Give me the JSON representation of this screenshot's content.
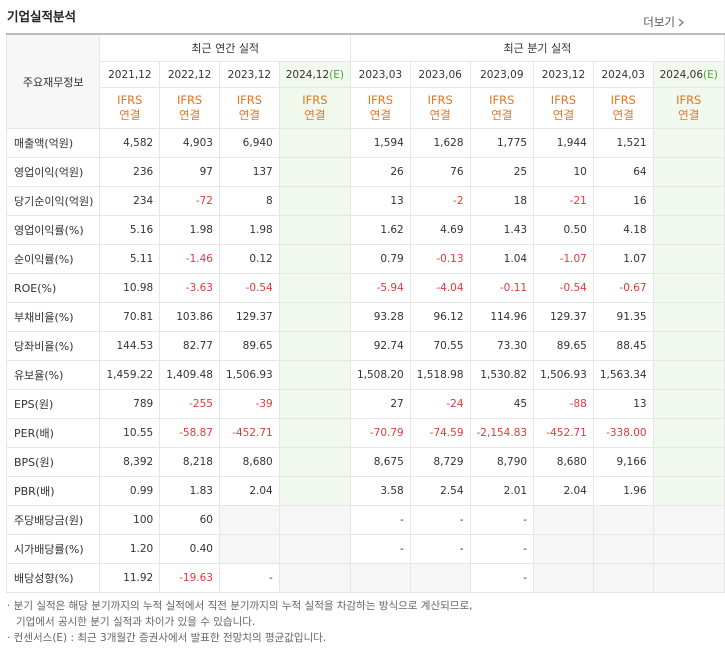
{
  "header": {
    "title": "기업실적분석",
    "more": "더보기"
  },
  "table": {
    "corner": "주요재무정보",
    "annual_title": "최근 연간 실적",
    "quarterly_title": "최근 분기 실적",
    "annual_columns": [
      {
        "period": "2021,12",
        "standard": "IFRS",
        "scope": "연결"
      },
      {
        "period": "2022,12",
        "standard": "IFRS",
        "scope": "연결"
      },
      {
        "period": "2023,12",
        "standard": "IFRS",
        "scope": "연결"
      },
      {
        "period": "2024,12",
        "estimate": "(E)",
        "standard": "IFRS",
        "scope": "연결"
      }
    ],
    "quarterly_columns": [
      {
        "period": "2023,03",
        "standard": "IFRS",
        "scope": "연결"
      },
      {
        "period": "2023,06",
        "standard": "IFRS",
        "scope": "연결"
      },
      {
        "period": "2023,09",
        "standard": "IFRS",
        "scope": "연결"
      },
      {
        "period": "2023,12",
        "standard": "IFRS",
        "scope": "연결"
      },
      {
        "period": "2024,03",
        "standard": "IFRS",
        "scope": "연결"
      },
      {
        "period": "2024,06",
        "estimate": "(E)",
        "standard": "IFRS",
        "scope": "연결"
      }
    ],
    "rows": [
      {
        "label": "매출액(억원)",
        "annual": [
          "4,582",
          "4,903",
          "6,940",
          null
        ],
        "quarterly": [
          "1,594",
          "1,628",
          "1,775",
          "1,944",
          "1,521",
          null
        ]
      },
      {
        "label": "영업이익(억원)",
        "annual": [
          "236",
          "97",
          "137",
          null
        ],
        "quarterly": [
          "26",
          "76",
          "25",
          "10",
          "64",
          null
        ]
      },
      {
        "label": "당기순이익(억원)",
        "annual": [
          "234",
          "-72",
          "8",
          null
        ],
        "quarterly": [
          "13",
          "-2",
          "18",
          "-21",
          "16",
          null
        ]
      },
      {
        "label": "영업이익률(%)",
        "annual": [
          "5.16",
          "1.98",
          "1.98",
          null
        ],
        "quarterly": [
          "1.62",
          "4.69",
          "1.43",
          "0.50",
          "4.18",
          null
        ]
      },
      {
        "label": "순이익률(%)",
        "annual": [
          "5.11",
          "-1.46",
          "0.12",
          null
        ],
        "quarterly": [
          "0.79",
          "-0.13",
          "1.04",
          "-1.07",
          "1.07",
          null
        ]
      },
      {
        "label": "ROE(%)",
        "annual": [
          "10.98",
          "-3.63",
          "-0.54",
          null
        ],
        "quarterly": [
          "-5.94",
          "-4.04",
          "-0.11",
          "-0.54",
          "-0.67",
          null
        ]
      },
      {
        "label": "부채비율(%)",
        "annual": [
          "70.81",
          "103.86",
          "129.37",
          null
        ],
        "quarterly": [
          "93.28",
          "96.12",
          "114.96",
          "129.37",
          "91.35",
          null
        ]
      },
      {
        "label": "당좌비율(%)",
        "annual": [
          "144.53",
          "82.77",
          "89.65",
          null
        ],
        "quarterly": [
          "92.74",
          "70.55",
          "73.30",
          "89.65",
          "88.45",
          null
        ]
      },
      {
        "label": "유보율(%)",
        "annual": [
          "1,459.22",
          "1,409.48",
          "1,506.93",
          null
        ],
        "quarterly": [
          "1,508.20",
          "1,518.98",
          "1,530.82",
          "1,506.93",
          "1,563.34",
          null
        ]
      },
      {
        "label": "EPS(원)",
        "annual": [
          "789",
          "-255",
          "-39",
          null
        ],
        "quarterly": [
          "27",
          "-24",
          "45",
          "-88",
          "13",
          null
        ]
      },
      {
        "label": "PER(배)",
        "annual": [
          "10.55",
          "-58.87",
          "-452.71",
          null
        ],
        "quarterly": [
          "-70.79",
          "-74.59",
          "-2,154.83",
          "-452.71",
          "-338.00",
          null
        ]
      },
      {
        "label": "BPS(원)",
        "annual": [
          "8,392",
          "8,218",
          "8,680",
          null
        ],
        "quarterly": [
          "8,675",
          "8,729",
          "8,790",
          "8,680",
          "9,166",
          null
        ]
      },
      {
        "label": "PBR(배)",
        "annual": [
          "0.99",
          "1.83",
          "2.04",
          null
        ],
        "quarterly": [
          "3.58",
          "2.54",
          "2.01",
          "2.04",
          "1.96",
          null
        ]
      },
      {
        "label": "주당배당금(원)",
        "annual": [
          "100",
          "60",
          null,
          null
        ],
        "quarterly": [
          "-",
          "-",
          "-",
          null,
          null,
          null
        ]
      },
      {
        "label": "시가배당률(%)",
        "annual": [
          "1.20",
          "0.40",
          null,
          null
        ],
        "quarterly": [
          "-",
          "-",
          "-",
          null,
          null,
          null
        ]
      },
      {
        "label": "배당성향(%)",
        "annual": [
          "11.92",
          "-19.63",
          "-",
          null
        ],
        "quarterly": [
          null,
          null,
          "-",
          null,
          null,
          null
        ]
      }
    ]
  },
  "notes": [
    "· 분기 실적은 해당 분기까지의 누적 실적에서 직전 분기까지의 누적 실적을 차감하는 방식으로 계산되므로,",
    "기업에서 공시한 분기 실적과 차이가 있을 수 있습니다.",
    "· 컨센서스(E) : 최근 3개월간 증권사에서 발표한 전망치의 평균값입니다."
  ]
}
